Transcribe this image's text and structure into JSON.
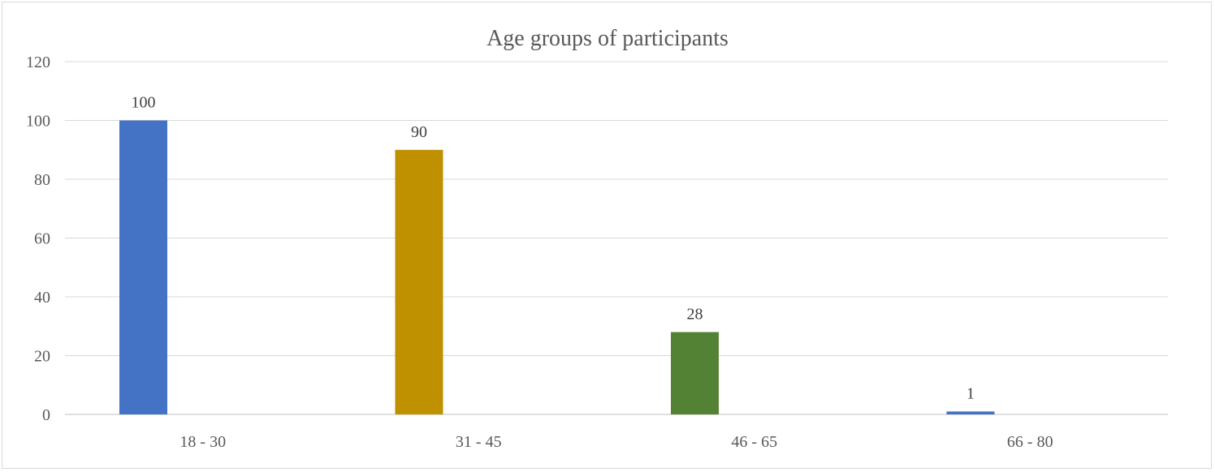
{
  "chart_data": {
    "type": "bar",
    "title": "Age groups of participants",
    "xlabel": "",
    "ylabel": "",
    "categories": [
      "18 - 30",
      "31 - 45",
      "46 - 65",
      "66 - 80"
    ],
    "values": [
      100,
      90,
      28,
      1
    ],
    "data_labels": [
      "100",
      "90",
      "28",
      "1"
    ],
    "bar_colors": [
      "#4472c4",
      "#bf9000",
      "#548235",
      "#4472c4"
    ],
    "ylim": [
      0,
      120
    ],
    "yticks": [
      0,
      20,
      40,
      60,
      80,
      100,
      120
    ],
    "ytick_labels": [
      "0",
      "20",
      "40",
      "60",
      "80",
      "100",
      "120"
    ],
    "grid": true,
    "legend": "none"
  }
}
